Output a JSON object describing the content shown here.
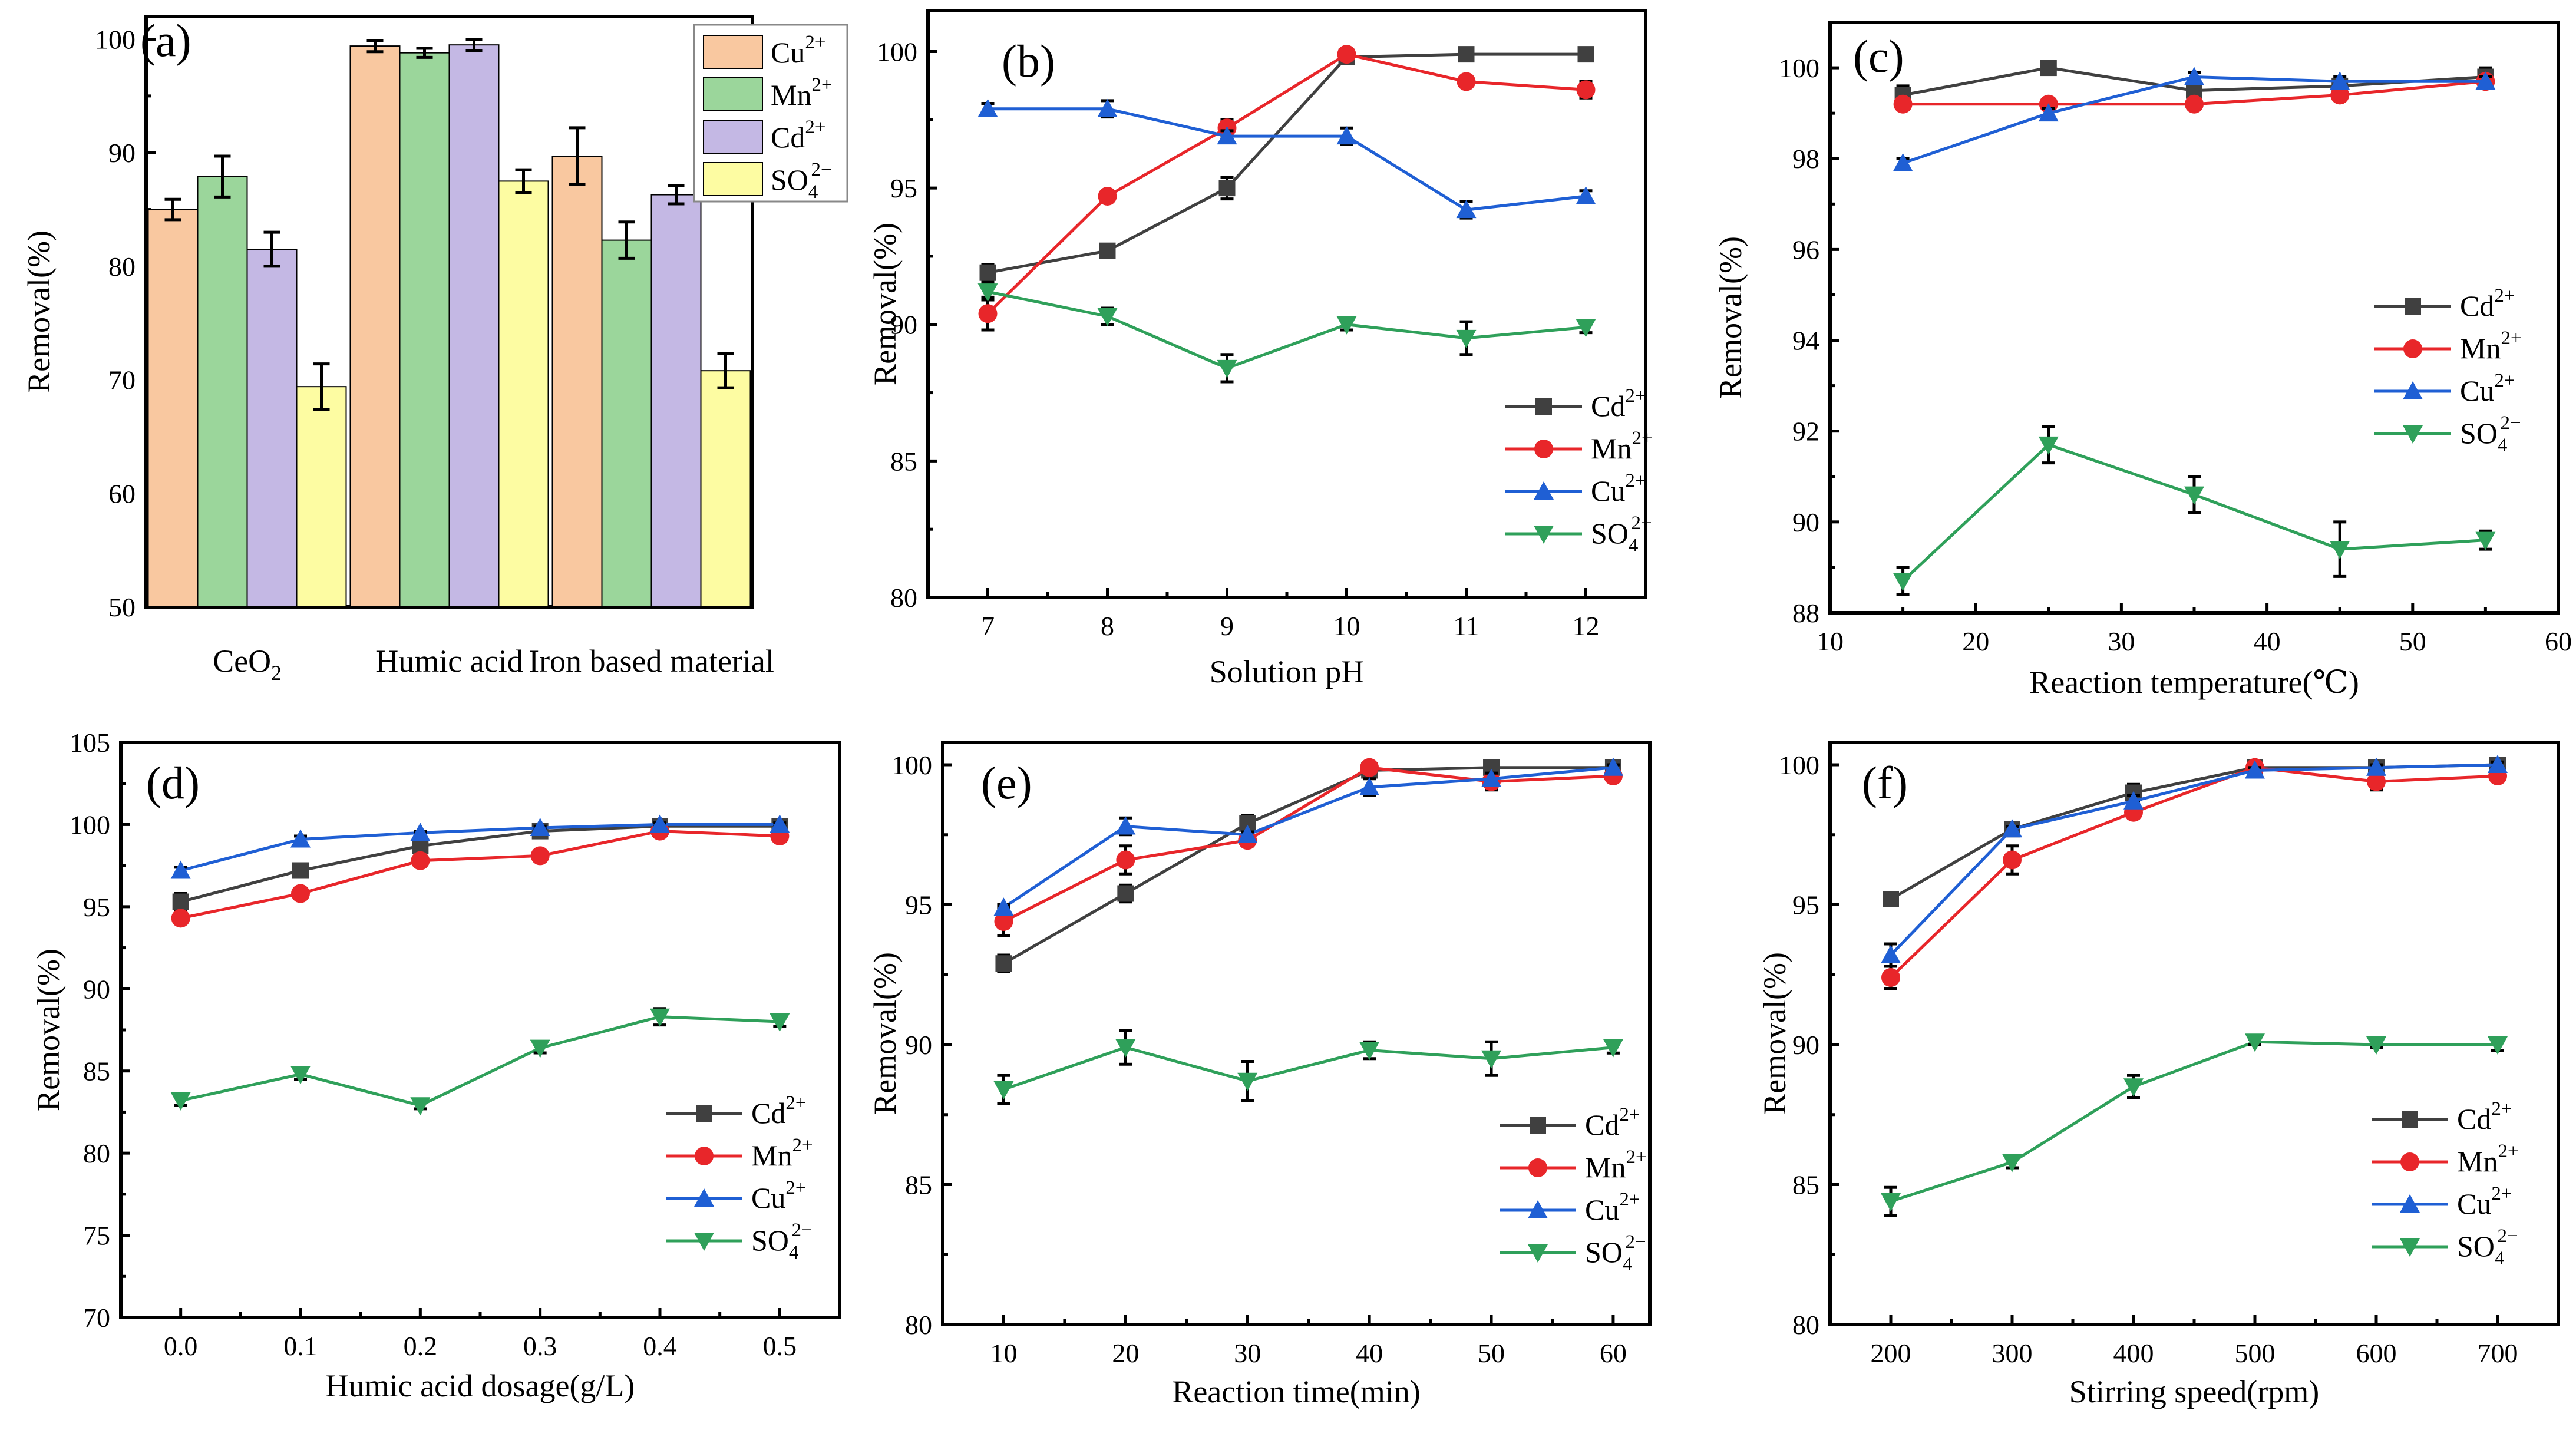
{
  "colors": {
    "Cd": "#404040",
    "Mn": "#e8262a",
    "Cu": "#1f5fd4",
    "SO4": "#2fa05a",
    "bar_Cu": "#f9c8a0",
    "bar_Mn": "#9bd69b",
    "bar_Cd": "#c4b8e4",
    "bar_SO4": "#fdfca2"
  },
  "chart_data": [
    {
      "panel": "(a)",
      "type": "bar",
      "ylabel": "Removal(%)",
      "xlabel": "",
      "ylim": [
        50,
        102
      ],
      "yticks": [
        50,
        60,
        70,
        80,
        90,
        100
      ],
      "categories": [
        "CeO2",
        "Humic acid",
        "Iron based material"
      ],
      "category_labels": [
        {
          "base": "CeO",
          "sub": "2"
        },
        {
          "base": "Humic acid",
          "sub": ""
        },
        {
          "base": "Iron based material",
          "sub": ""
        }
      ],
      "series": [
        {
          "key": "bar_Cu",
          "base": "Cu",
          "sup": "2+",
          "sub": "",
          "values": [
            85.0,
            99.4,
            89.7
          ],
          "errors": [
            0.9,
            0.5,
            2.5
          ]
        },
        {
          "key": "bar_Mn",
          "base": "Mn",
          "sup": "2+",
          "sub": "",
          "values": [
            87.9,
            98.8,
            82.3
          ],
          "errors": [
            1.8,
            0.4,
            1.6
          ]
        },
        {
          "key": "bar_Cd",
          "base": "Cd",
          "sup": "2+",
          "sub": "",
          "values": [
            81.5,
            99.5,
            86.3
          ],
          "errors": [
            1.5,
            0.5,
            0.8
          ]
        },
        {
          "key": "bar_SO4",
          "base": "SO",
          "sup": "2−",
          "sub": "4",
          "values": [
            69.4,
            87.5,
            70.8
          ],
          "errors": [
            2.0,
            1.0,
            1.5
          ]
        }
      ],
      "legend_position": "top-right"
    },
    {
      "panel": "(b)",
      "type": "line",
      "xlabel": "Solution pH",
      "ylabel": "Removal(%)",
      "xlim": [
        6.5,
        12.5
      ],
      "ylim": [
        80,
        101.5
      ],
      "xticks": [
        7,
        8,
        9,
        10,
        11,
        12
      ],
      "yticks": [
        80,
        85,
        90,
        95,
        100
      ],
      "x": [
        7,
        8,
        9,
        10,
        11,
        12
      ],
      "series": [
        {
          "key": "Cd",
          "marker": "square",
          "base": "Cd",
          "sup": "2+",
          "sub": "",
          "values": [
            91.9,
            92.7,
            95.0,
            99.8,
            99.9,
            99.9
          ],
          "errors": [
            0.3,
            0.2,
            0.4,
            0.2,
            0.1,
            0.1
          ]
        },
        {
          "key": "Mn",
          "marker": "circle",
          "base": "Mn",
          "sup": "2+",
          "sub": "",
          "values": [
            90.4,
            94.7,
            97.2,
            99.9,
            98.9,
            98.6
          ],
          "errors": [
            0.6,
            0.2,
            0.3,
            0.2,
            0.1,
            0.3
          ]
        },
        {
          "key": "Cu",
          "marker": "triangle-up",
          "base": "Cu",
          "sup": "2+",
          "sub": "",
          "values": [
            97.9,
            97.9,
            96.9,
            96.9,
            94.2,
            94.7
          ],
          "errors": [
            0.2,
            0.3,
            0.2,
            0.3,
            0.3,
            0.2
          ]
        },
        {
          "key": "SO4",
          "marker": "triangle-down",
          "base": "SO",
          "sup": "2−",
          "sub": "4",
          "values": [
            91.2,
            90.3,
            88.4,
            90.0,
            89.5,
            89.9
          ],
          "errors": [
            0.3,
            0.3,
            0.5,
            0.2,
            0.6,
            0.2
          ]
        }
      ],
      "legend_position": "bottom-right"
    },
    {
      "panel": "(c)",
      "type": "line",
      "xlabel": "Reaction temperature(℃)",
      "ylabel": "Removal(%)",
      "xlim": [
        10,
        60
      ],
      "ylim": [
        88,
        101
      ],
      "xticks": [
        10,
        20,
        30,
        40,
        50,
        60
      ],
      "yticks": [
        88,
        90,
        92,
        94,
        96,
        98,
        100
      ],
      "x": [
        15,
        25,
        35,
        45,
        55
      ],
      "series": [
        {
          "key": "Cd",
          "marker": "square",
          "base": "Cd",
          "sup": "2+",
          "sub": "",
          "values": [
            99.4,
            100.0,
            99.5,
            99.6,
            99.8
          ],
          "errors": [
            0.2,
            0.1,
            0.1,
            0.1,
            0.2
          ]
        },
        {
          "key": "Mn",
          "marker": "circle",
          "base": "Mn",
          "sup": "2+",
          "sub": "",
          "values": [
            99.2,
            99.2,
            99.2,
            99.4,
            99.7
          ],
          "errors": [
            0.1,
            0.1,
            0.1,
            0.1,
            0.1
          ]
        },
        {
          "key": "Cu",
          "marker": "triangle-up",
          "base": "Cu",
          "sup": "2+",
          "sub": "",
          "values": [
            97.9,
            99.0,
            99.8,
            99.7,
            99.7
          ],
          "errors": [
            0.1,
            0.1,
            0.1,
            0.1,
            0.1
          ]
        },
        {
          "key": "SO4",
          "marker": "triangle-down",
          "base": "SO",
          "sup": "2−",
          "sub": "4",
          "values": [
            88.7,
            91.7,
            90.6,
            89.4,
            89.6
          ],
          "errors": [
            0.3,
            0.4,
            0.4,
            0.6,
            0.2
          ]
        }
      ],
      "legend_position": "center-right"
    },
    {
      "panel": "(d)",
      "type": "line",
      "xlabel": "Humic acid dosage(g/L)",
      "ylabel": "Removal(%)",
      "xlim": [
        -0.05,
        0.55
      ],
      "ylim": [
        70,
        105
      ],
      "xticks": [
        0.0,
        0.1,
        0.2,
        0.3,
        0.4,
        0.5
      ],
      "xtick_labels": [
        "0.0",
        "0.1",
        "0.2",
        "0.3",
        "0.4",
        "0.5"
      ],
      "yticks": [
        70,
        75,
        80,
        85,
        90,
        95,
        100,
        105
      ],
      "x": [
        0.0,
        0.1,
        0.2,
        0.3,
        0.4,
        0.5
      ],
      "series": [
        {
          "key": "Cd",
          "marker": "square",
          "base": "Cd",
          "sup": "2+",
          "sub": "",
          "values": [
            95.3,
            97.2,
            98.7,
            99.6,
            99.9,
            99.9
          ],
          "errors": [
            0.5,
            0.2,
            0.2,
            0.3,
            0.1,
            0.1
          ]
        },
        {
          "key": "Mn",
          "marker": "circle",
          "base": "Mn",
          "sup": "2+",
          "sub": "",
          "values": [
            94.3,
            95.8,
            97.8,
            98.1,
            99.6,
            99.3
          ],
          "errors": [
            0.3,
            0.2,
            0.2,
            0.2,
            0.2,
            0.2
          ]
        },
        {
          "key": "Cu",
          "marker": "triangle-up",
          "base": "Cu",
          "sup": "2+",
          "sub": "",
          "values": [
            97.2,
            99.1,
            99.5,
            99.8,
            100.0,
            100.0
          ],
          "errors": [
            0.2,
            0.2,
            0.1,
            0.1,
            0.1,
            0.1
          ]
        },
        {
          "key": "SO4",
          "marker": "triangle-down",
          "base": "SO",
          "sup": "2−",
          "sub": "4",
          "values": [
            83.2,
            84.8,
            82.9,
            86.4,
            88.3,
            88.0
          ],
          "errors": [
            0.3,
            0.3,
            0.2,
            0.3,
            0.5,
            0.3
          ]
        }
      ],
      "legend_position": "bottom-right"
    },
    {
      "panel": "(e)",
      "type": "line",
      "xlabel": "Reaction time(min)",
      "ylabel": "Removal(%)",
      "xlim": [
        5,
        63
      ],
      "ylim": [
        80,
        100.8
      ],
      "xticks": [
        10,
        20,
        30,
        40,
        50,
        60
      ],
      "yticks": [
        80,
        85,
        90,
        95,
        100
      ],
      "x": [
        10,
        20,
        30,
        40,
        50,
        60
      ],
      "series": [
        {
          "key": "Cd",
          "marker": "square",
          "base": "Cd",
          "sup": "2+",
          "sub": "",
          "values": [
            92.9,
            95.4,
            97.9,
            99.8,
            99.9,
            99.9
          ],
          "errors": [
            0.3,
            0.3,
            0.3,
            0.1,
            0.1,
            0.1
          ]
        },
        {
          "key": "Mn",
          "marker": "circle",
          "base": "Mn",
          "sup": "2+",
          "sub": "",
          "values": [
            94.4,
            96.6,
            97.3,
            99.9,
            99.4,
            99.6
          ],
          "errors": [
            0.5,
            0.5,
            0.2,
            0.1,
            0.3,
            0.1
          ]
        },
        {
          "key": "Cu",
          "marker": "triangle-up",
          "base": "Cu",
          "sup": "2+",
          "sub": "",
          "values": [
            94.9,
            97.8,
            97.5,
            99.2,
            99.5,
            99.9
          ],
          "errors": [
            0.1,
            0.3,
            0.1,
            0.3,
            0.2,
            0.1
          ]
        },
        {
          "key": "SO4",
          "marker": "triangle-down",
          "base": "SO",
          "sup": "2−",
          "sub": "4",
          "values": [
            88.4,
            89.9,
            88.7,
            89.8,
            89.5,
            89.9
          ],
          "errors": [
            0.5,
            0.6,
            0.7,
            0.3,
            0.6,
            0.2
          ]
        }
      ],
      "legend_position": "bottom-right"
    },
    {
      "panel": "(f)",
      "type": "line",
      "xlabel": "Stirring speed(rpm)",
      "ylabel": "Removal(%)",
      "xlim": [
        150,
        750
      ],
      "ylim": [
        80,
        100.8
      ],
      "xticks": [
        200,
        300,
        400,
        500,
        600,
        700
      ],
      "yticks": [
        80,
        85,
        90,
        95,
        100
      ],
      "x": [
        200,
        300,
        400,
        500,
        600,
        700
      ],
      "series": [
        {
          "key": "Cd",
          "marker": "square",
          "base": "Cd",
          "sup": "2+",
          "sub": "",
          "values": [
            95.2,
            97.7,
            99.0,
            99.9,
            99.9,
            100.0
          ],
          "errors": [
            0.2,
            0.2,
            0.3,
            0.1,
            0.1,
            0.1
          ]
        },
        {
          "key": "Mn",
          "marker": "circle",
          "base": "Mn",
          "sup": "2+",
          "sub": "",
          "values": [
            92.4,
            96.6,
            98.3,
            99.9,
            99.4,
            99.6
          ],
          "errors": [
            0.4,
            0.5,
            0.2,
            0.1,
            0.3,
            0.1
          ]
        },
        {
          "key": "Cu",
          "marker": "triangle-up",
          "base": "Cu",
          "sup": "2+",
          "sub": "",
          "values": [
            93.2,
            97.7,
            98.7,
            99.8,
            99.9,
            100.0
          ],
          "errors": [
            0.4,
            0.1,
            0.2,
            0.1,
            0.1,
            0.1
          ]
        },
        {
          "key": "SO4",
          "marker": "triangle-down",
          "base": "SO",
          "sup": "2−",
          "sub": "4",
          "values": [
            84.4,
            85.8,
            88.5,
            90.1,
            90.0,
            90.0
          ],
          "errors": [
            0.5,
            0.2,
            0.4,
            0.1,
            0.1,
            0.2
          ]
        }
      ],
      "legend_position": "bottom-right"
    }
  ]
}
